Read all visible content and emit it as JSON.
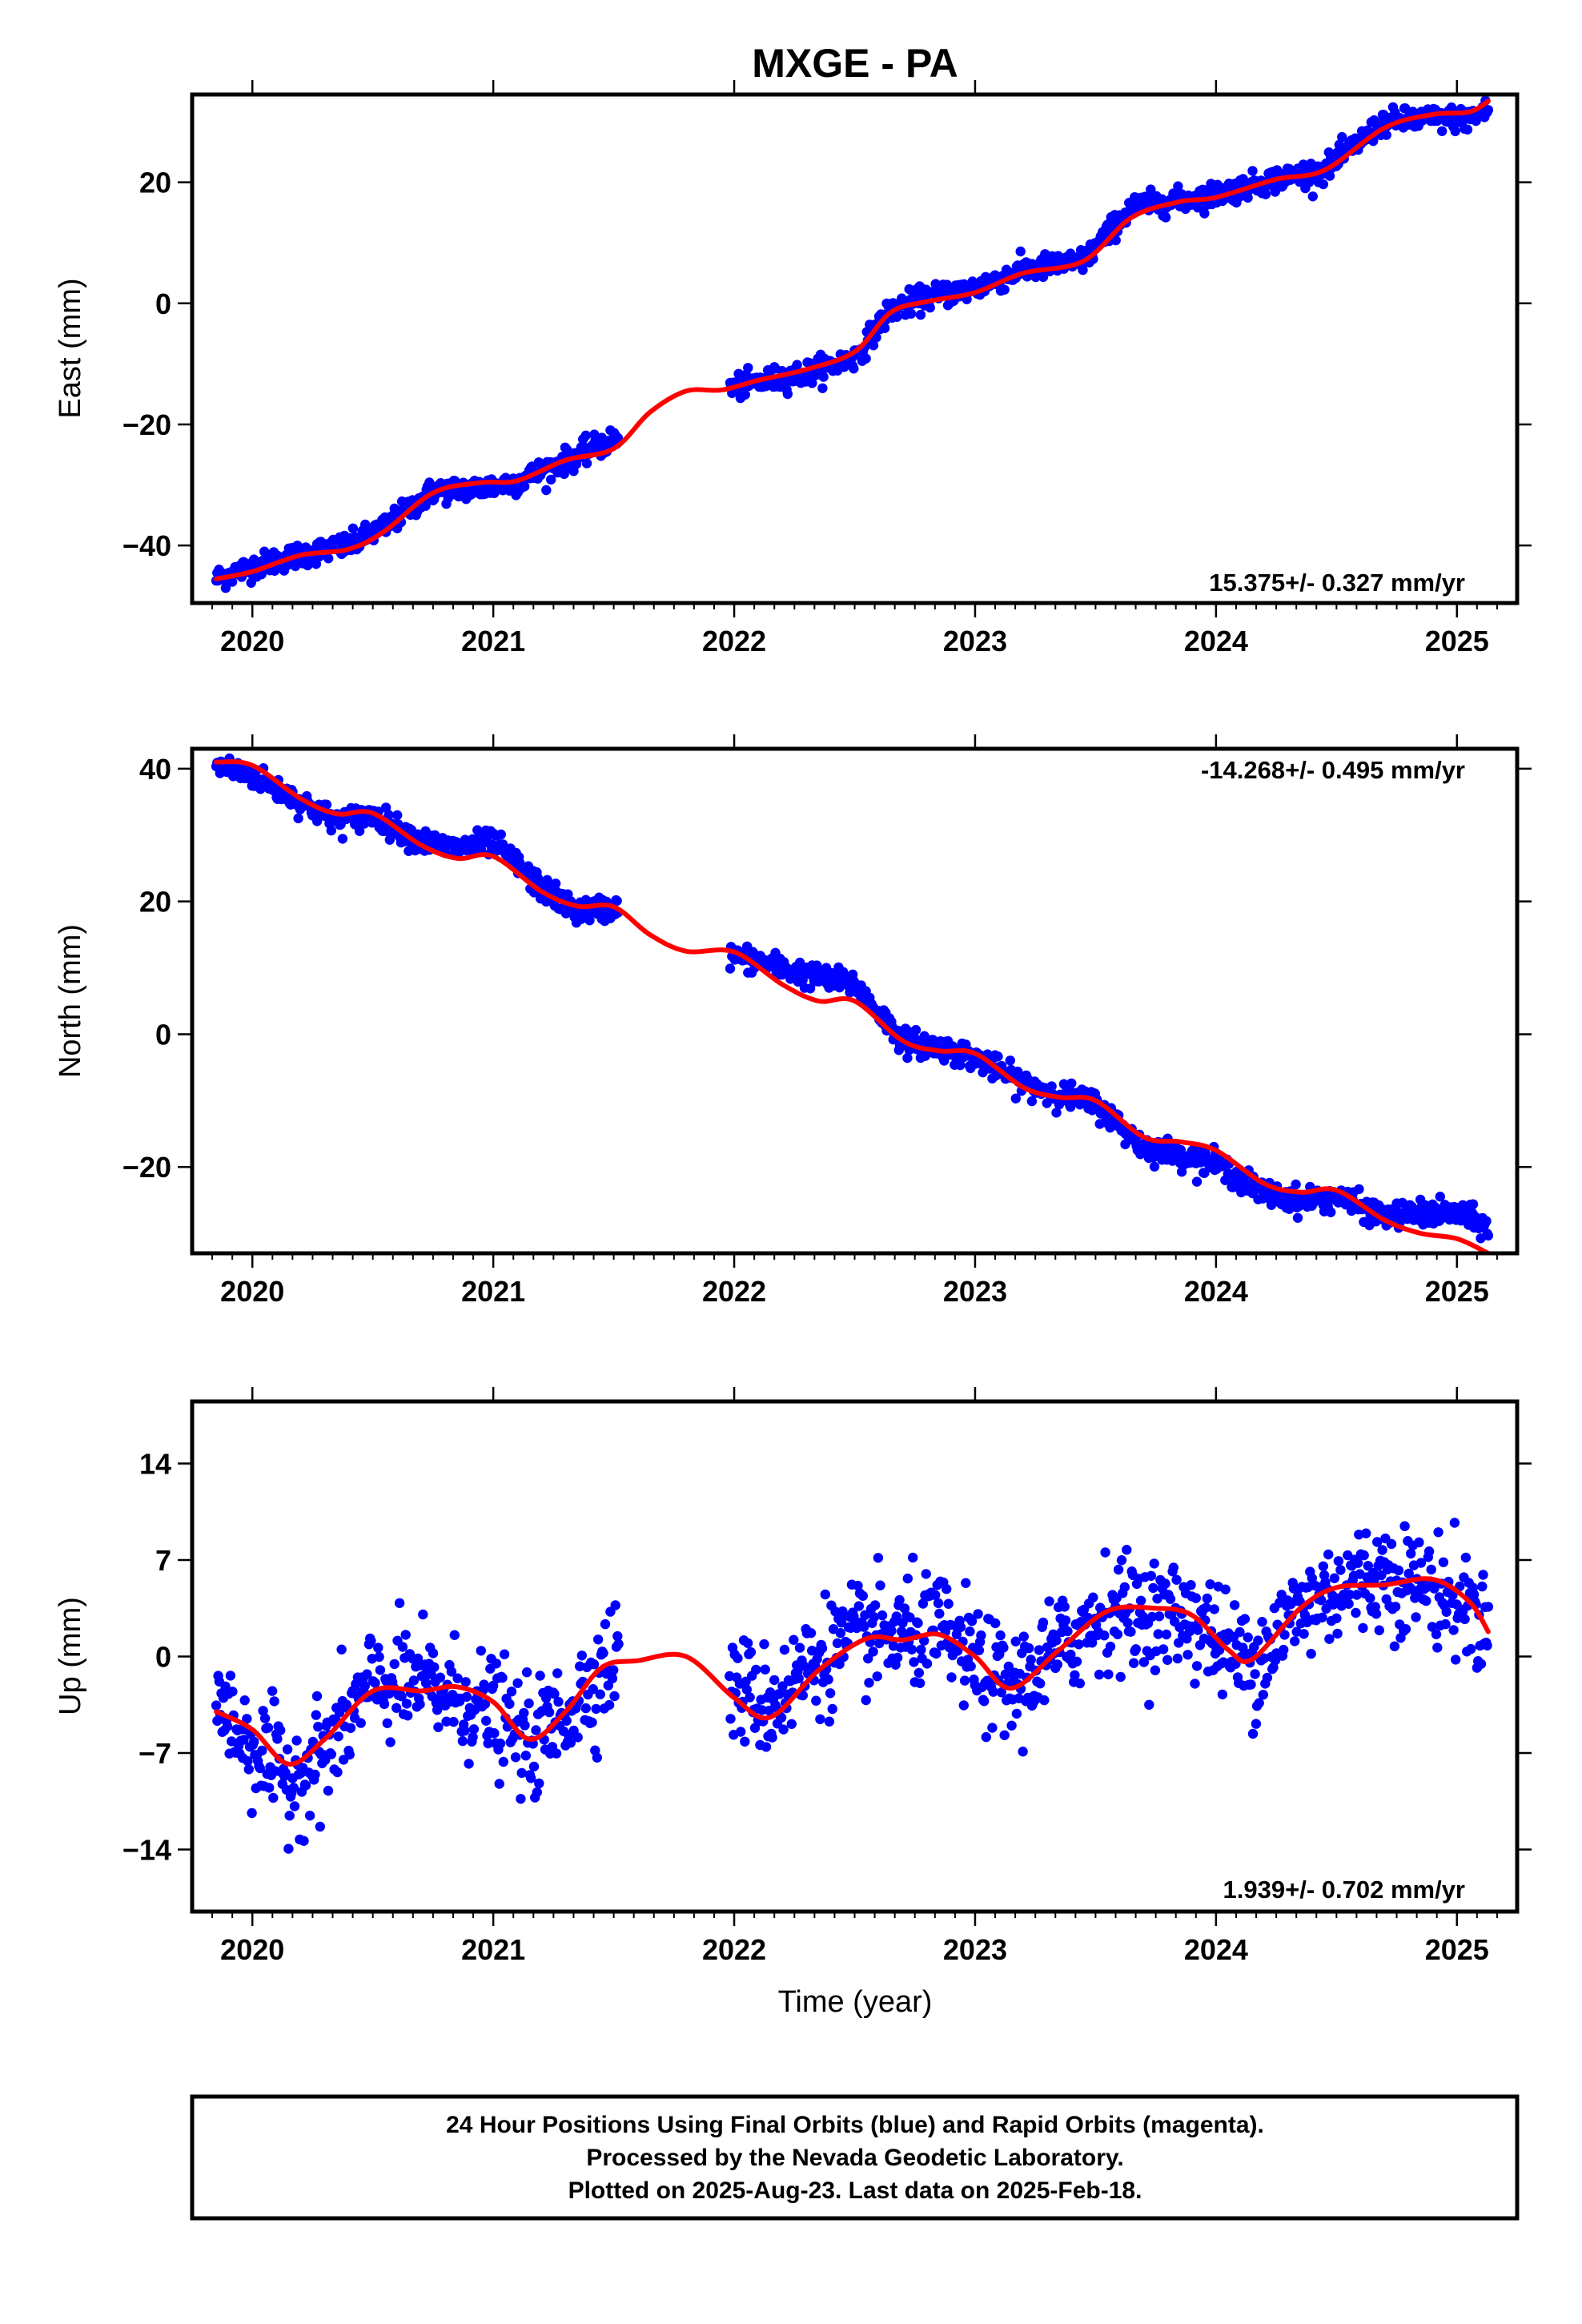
{
  "page": {
    "title": "MXGE - PA"
  },
  "chart_data": [
    {
      "type": "scatter",
      "name_key": "east",
      "ylabel": "East (mm)",
      "xlabel": "",
      "xlim": [
        2019.75,
        2025.25
      ],
      "ylim": [
        -49.5,
        34.5
      ],
      "x_ticks": [
        2020,
        2021,
        2022,
        2023,
        2024,
        2025
      ],
      "y_ticks": [
        -40,
        -20,
        0,
        20
      ],
      "y_tick_labels": [
        "−40",
        "−20",
        "0",
        "20"
      ],
      "rate_label": "15.375+/- 0.327 mm/yr",
      "rate_position": "bottom-right",
      "points_color": "#0000ff",
      "model_color": "#ff0000",
      "gap": [
        2021.52,
        2021.98
      ],
      "model_curve": [
        [
          2019.85,
          -45.5
        ],
        [
          2020.0,
          -44.3
        ],
        [
          2020.2,
          -41.6
        ],
        [
          2020.4,
          -40.6
        ],
        [
          2020.55,
          -37.6
        ],
        [
          2020.75,
          -31.3
        ],
        [
          2020.95,
          -29.6
        ],
        [
          2021.1,
          -29.3
        ],
        [
          2021.3,
          -25.9
        ],
        [
          2021.5,
          -24.0
        ],
        [
          2021.65,
          -18.0
        ],
        [
          2021.8,
          -14.5
        ],
        [
          2021.95,
          -14.3
        ],
        [
          2022.1,
          -12.7
        ],
        [
          2022.3,
          -10.9
        ],
        [
          2022.5,
          -8.0
        ],
        [
          2022.65,
          -1.5
        ],
        [
          2022.8,
          0.3
        ],
        [
          2023.0,
          1.8
        ],
        [
          2023.2,
          5.0
        ],
        [
          2023.45,
          7.0
        ],
        [
          2023.65,
          14.2
        ],
        [
          2023.85,
          16.8
        ],
        [
          2024.0,
          17.5
        ],
        [
          2024.25,
          20.5
        ],
        [
          2024.45,
          22.0
        ],
        [
          2024.7,
          29.0
        ],
        [
          2024.9,
          31.2
        ],
        [
          2025.05,
          31.6
        ],
        [
          2025.13,
          33.4
        ]
      ],
      "scatter_anchors": [
        [
          2019.85,
          -45.5
        ],
        [
          2020.0,
          -43.5
        ],
        [
          2020.2,
          -41.5
        ],
        [
          2020.4,
          -40.0
        ],
        [
          2020.55,
          -37.0
        ],
        [
          2020.75,
          -31.0
        ],
        [
          2020.95,
          -30.5
        ],
        [
          2021.1,
          -29.5
        ],
        [
          2021.3,
          -26.0
        ],
        [
          2021.5,
          -22.5
        ],
        [
          2021.98,
          -14.0
        ],
        [
          2022.3,
          -11.5
        ],
        [
          2022.5,
          -9.0
        ],
        [
          2022.65,
          -1.0
        ],
        [
          2022.8,
          1.0
        ],
        [
          2023.0,
          2.5
        ],
        [
          2023.2,
          5.5
        ],
        [
          2023.45,
          7.0
        ],
        [
          2023.65,
          16.0
        ],
        [
          2023.85,
          17.0
        ],
        [
          2024.0,
          18.0
        ],
        [
          2024.25,
          20.5
        ],
        [
          2024.45,
          22.0
        ],
        [
          2024.7,
          30.0
        ],
        [
          2024.9,
          30.5
        ],
        [
          2025.05,
          30.5
        ],
        [
          2025.13,
          32.0
        ]
      ],
      "scatter_spread": 1.8,
      "scatter_count": 1350
    },
    {
      "type": "scatter",
      "name_key": "north",
      "ylabel": "North (mm)",
      "xlabel": "",
      "xlim": [
        2019.75,
        2025.25
      ],
      "ylim": [
        -33,
        43
      ],
      "x_ticks": [
        2020,
        2021,
        2022,
        2023,
        2024,
        2025
      ],
      "y_ticks": [
        -20,
        0,
        20,
        40
      ],
      "y_tick_labels": [
        "−20",
        "0",
        "20",
        "40"
      ],
      "rate_label": "-14.268+/- 0.495 mm/yr",
      "rate_position": "top-right",
      "points_color": "#0000ff",
      "model_color": "#ff0000",
      "gap": [
        2021.52,
        2021.98
      ],
      "model_curve": [
        [
          2019.85,
          41.0
        ],
        [
          2020.0,
          40.5
        ],
        [
          2020.2,
          35.5
        ],
        [
          2020.35,
          33.2
        ],
        [
          2020.5,
          33.3
        ],
        [
          2020.7,
          28.5
        ],
        [
          2020.85,
          26.5
        ],
        [
          2021.0,
          26.8
        ],
        [
          2021.2,
          21.5
        ],
        [
          2021.35,
          19.3
        ],
        [
          2021.5,
          19.2
        ],
        [
          2021.65,
          15.0
        ],
        [
          2021.8,
          12.5
        ],
        [
          2022.0,
          12.4
        ],
        [
          2022.2,
          7.5
        ],
        [
          2022.35,
          5.0
        ],
        [
          2022.5,
          5.0
        ],
        [
          2022.7,
          -1.0
        ],
        [
          2022.85,
          -2.5
        ],
        [
          2023.0,
          -2.9
        ],
        [
          2023.2,
          -8.0
        ],
        [
          2023.35,
          -9.5
        ],
        [
          2023.5,
          -10.0
        ],
        [
          2023.7,
          -15.5
        ],
        [
          2023.85,
          -16.2
        ],
        [
          2024.0,
          -17.5
        ],
        [
          2024.2,
          -22.5
        ],
        [
          2024.35,
          -23.8
        ],
        [
          2024.5,
          -23.5
        ],
        [
          2024.7,
          -28.0
        ],
        [
          2024.85,
          -30.0
        ],
        [
          2025.0,
          -30.8
        ],
        [
          2025.13,
          -33.0
        ]
      ],
      "scatter_anchors": [
        [
          2019.85,
          40.5
        ],
        [
          2020.0,
          39.0
        ],
        [
          2020.2,
          35.0
        ],
        [
          2020.35,
          32.0
        ],
        [
          2020.5,
          33.0
        ],
        [
          2020.7,
          29.0
        ],
        [
          2020.85,
          28.0
        ],
        [
          2021.0,
          29.0
        ],
        [
          2021.2,
          22.0
        ],
        [
          2021.35,
          18.5
        ],
        [
          2021.5,
          19.0
        ],
        [
          2021.98,
          12.0
        ],
        [
          2022.2,
          10.0
        ],
        [
          2022.35,
          8.5
        ],
        [
          2022.5,
          7.5
        ],
        [
          2022.7,
          -1.0
        ],
        [
          2022.85,
          -2.0
        ],
        [
          2023.0,
          -3.5
        ],
        [
          2023.2,
          -7.5
        ],
        [
          2023.35,
          -9.0
        ],
        [
          2023.5,
          -10.5
        ],
        [
          2023.7,
          -17.0
        ],
        [
          2023.85,
          -18.0
        ],
        [
          2024.0,
          -19.5
        ],
        [
          2024.2,
          -24.0
        ],
        [
          2024.35,
          -25.0
        ],
        [
          2024.5,
          -24.5
        ],
        [
          2024.7,
          -27.5
        ],
        [
          2024.85,
          -27.0
        ],
        [
          2025.0,
          -27.0
        ],
        [
          2025.13,
          -29.0
        ]
      ],
      "scatter_spread": 1.7,
      "scatter_count": 1350
    },
    {
      "type": "scatter",
      "name_key": "up",
      "ylabel": "Up (mm)",
      "xlabel": "Time (year)",
      "xlim": [
        2019.75,
        2025.25
      ],
      "ylim": [
        -18.5,
        18.5
      ],
      "x_ticks": [
        2020,
        2021,
        2022,
        2023,
        2024,
        2025
      ],
      "y_ticks": [
        -14,
        -7,
        0,
        7,
        14
      ],
      "y_tick_labels": [
        "−14",
        "−7",
        "0",
        "7",
        "14"
      ],
      "rate_label": "1.939+/- 0.702 mm/yr",
      "rate_position": "bottom-right",
      "points_color": "#0000ff",
      "model_color": "#ff0000",
      "gap": [
        2021.52,
        2021.98
      ],
      "model_curve": [
        [
          2019.85,
          -4.0
        ],
        [
          2020.0,
          -5.3
        ],
        [
          2020.15,
          -7.8
        ],
        [
          2020.3,
          -6.0
        ],
        [
          2020.5,
          -2.5
        ],
        [
          2020.7,
          -2.5
        ],
        [
          2020.85,
          -2.2
        ],
        [
          2021.0,
          -3.3
        ],
        [
          2021.15,
          -6.0
        ],
        [
          2021.3,
          -4.0
        ],
        [
          2021.45,
          -0.8
        ],
        [
          2021.6,
          -0.3
        ],
        [
          2021.8,
          0.0
        ],
        [
          2022.0,
          -3.0
        ],
        [
          2022.15,
          -4.4
        ],
        [
          2022.35,
          -1.0
        ],
        [
          2022.55,
          1.3
        ],
        [
          2022.7,
          1.2
        ],
        [
          2022.85,
          1.6
        ],
        [
          2023.0,
          0.0
        ],
        [
          2023.15,
          -2.3
        ],
        [
          2023.35,
          0.5
        ],
        [
          2023.55,
          3.3
        ],
        [
          2023.75,
          3.5
        ],
        [
          2023.9,
          3.0
        ],
        [
          2024.05,
          0.5
        ],
        [
          2024.15,
          -0.2
        ],
        [
          2024.35,
          3.5
        ],
        [
          2024.5,
          5.0
        ],
        [
          2024.7,
          5.2
        ],
        [
          2024.9,
          5.6
        ],
        [
          2025.05,
          4.0
        ],
        [
          2025.13,
          1.8
        ]
      ],
      "scatter_anchors": [
        [
          2019.85,
          -3.5
        ],
        [
          2020.0,
          -6.5
        ],
        [
          2020.15,
          -9.0
        ],
        [
          2020.3,
          -7.0
        ],
        [
          2020.5,
          -2.0
        ],
        [
          2020.7,
          -2.0
        ],
        [
          2020.85,
          -3.0
        ],
        [
          2021.0,
          -4.0
        ],
        [
          2021.15,
          -6.5
        ],
        [
          2021.3,
          -4.0
        ],
        [
          2021.5,
          0.0
        ],
        [
          2021.98,
          -2.0
        ],
        [
          2022.15,
          -3.5
        ],
        [
          2022.35,
          0.0
        ],
        [
          2022.55,
          1.5
        ],
        [
          2022.7,
          1.5
        ],
        [
          2022.85,
          2.0
        ],
        [
          2023.0,
          -0.5
        ],
        [
          2023.15,
          -2.5
        ],
        [
          2023.35,
          0.5
        ],
        [
          2023.55,
          3.5
        ],
        [
          2023.75,
          3.0
        ],
        [
          2023.9,
          3.0
        ],
        [
          2024.05,
          0.5
        ],
        [
          2024.15,
          -0.5
        ],
        [
          2024.35,
          3.5
        ],
        [
          2024.5,
          5.0
        ],
        [
          2024.7,
          6.0
        ],
        [
          2024.9,
          5.0
        ],
        [
          2025.05,
          3.5
        ],
        [
          2025.13,
          2.0
        ]
      ],
      "scatter_spread": 3.6,
      "scatter_count": 1250
    }
  ],
  "footer": {
    "line1": "24 Hour Positions Using Final Orbits (blue) and Rapid Orbits (magenta).",
    "line2": "Processed by the Nevada Geodetic Laboratory.",
    "line3": "Plotted on 2025-Aug-23. Last data on 2025-Feb-18."
  }
}
